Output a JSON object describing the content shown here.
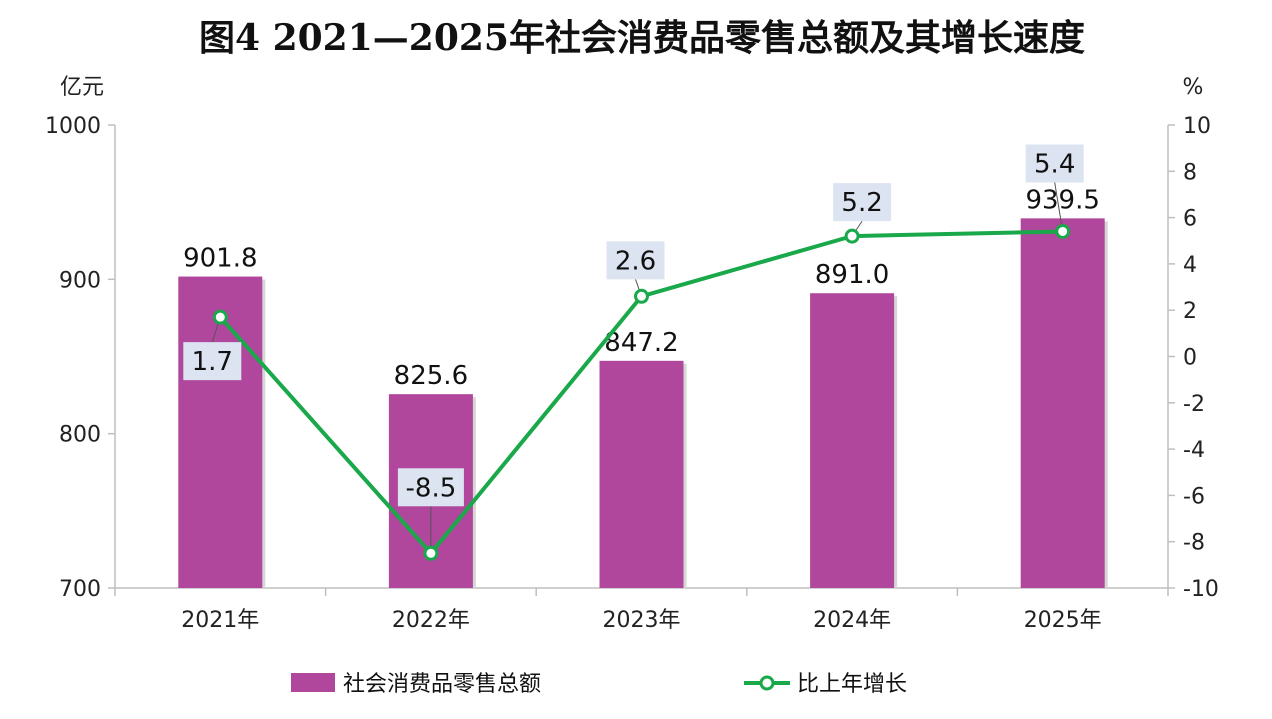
{
  "chart_data": {
    "type": "bar+line",
    "title": "图4  2021—2025年社会消费品零售总额及其增长速度",
    "left_unit": "亿元",
    "right_unit": "%",
    "categories": [
      "2021年",
      "2022年",
      "2023年",
      "2024年",
      "2025年"
    ],
    "left_axis": {
      "ylim": [
        700,
        1000
      ],
      "ticks": [
        "700",
        "800",
        "900",
        "1000"
      ]
    },
    "right_axis": {
      "ylim": [
        -10,
        10
      ],
      "ticks": [
        "-10",
        "-8",
        "-6",
        "-4",
        "-2",
        "0",
        "2",
        "4",
        "6",
        "8",
        "10"
      ]
    },
    "series": [
      {
        "name": "社会消费品零售总额",
        "type": "bar",
        "axis": "left",
        "values": [
          901.8,
          825.6,
          847.2,
          891.0,
          939.5
        ],
        "labels": [
          "901.8",
          "825.6",
          "847.2",
          "891.0",
          "939.5"
        ],
        "color": "#b0479c"
      },
      {
        "name": "比上年增长",
        "type": "line",
        "axis": "right",
        "values": [
          1.7,
          -8.5,
          2.6,
          5.2,
          5.4
        ],
        "labels": [
          "1.7",
          "-8.5",
          "2.6",
          "5.2",
          "5.4"
        ],
        "color": "#19a84a"
      }
    ],
    "legend": "bottom",
    "grid": false
  }
}
